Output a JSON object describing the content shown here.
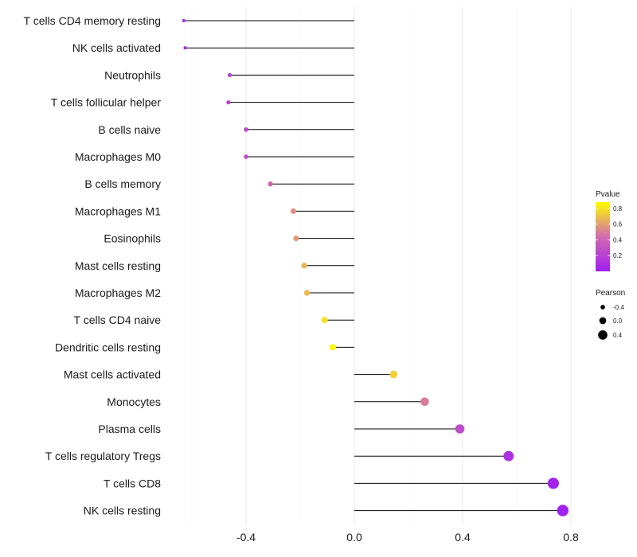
{
  "chart_data": {
    "type": "lollipop",
    "title": "",
    "xlabel": "",
    "ylabel": "",
    "xlim": [
      -0.7,
      0.8
    ],
    "x_ticks": [
      -0.4,
      0.0,
      0.4,
      0.8
    ],
    "x_tick_labels": [
      "-0.4",
      "0.0",
      "0.4",
      "0.8"
    ],
    "grid": true,
    "series": [
      {
        "name": "T cells CD4 memory resting",
        "pearson": -0.63,
        "pvalue": 0.05
      },
      {
        "name": "NK cells activated",
        "pearson": -0.625,
        "pvalue": 0.05
      },
      {
        "name": "Neutrophils",
        "pearson": -0.46,
        "pvalue": 0.21
      },
      {
        "name": "T cells follicular helper",
        "pearson": -0.465,
        "pvalue": 0.21
      },
      {
        "name": "B cells naive",
        "pearson": -0.4,
        "pvalue": 0.26
      },
      {
        "name": "Macrophages M0",
        "pearson": -0.4,
        "pvalue": 0.27
      },
      {
        "name": "B cells memory",
        "pearson": -0.31,
        "pvalue": 0.39
      },
      {
        "name": "Macrophages M1",
        "pearson": -0.225,
        "pvalue": 0.55
      },
      {
        "name": "Eosinophils",
        "pearson": -0.215,
        "pvalue": 0.58
      },
      {
        "name": "Mast cells resting",
        "pearson": -0.185,
        "pvalue": 0.66
      },
      {
        "name": "Macrophages M2",
        "pearson": -0.175,
        "pvalue": 0.68
      },
      {
        "name": "T cells CD4 naive",
        "pearson": -0.11,
        "pvalue": 0.8
      },
      {
        "name": "Dendritic cells resting",
        "pearson": -0.08,
        "pvalue": 0.86
      },
      {
        "name": "Mast cells activated",
        "pearson": 0.145,
        "pvalue": 0.74
      },
      {
        "name": "Monocytes",
        "pearson": 0.26,
        "pvalue": 0.5
      },
      {
        "name": "Plasma cells",
        "pearson": 0.39,
        "pvalue": 0.26
      },
      {
        "name": "T cells regulatory  Tregs",
        "pearson": 0.57,
        "pvalue": 0.1
      },
      {
        "name": "T cells CD8",
        "pearson": 0.735,
        "pvalue": 0.02
      },
      {
        "name": "NK cells resting",
        "pearson": 0.77,
        "pvalue": 0.01
      }
    ],
    "legend": {
      "color_title": "Pvalue",
      "color_ticks": [
        0.8,
        0.6,
        0.4,
        0.2
      ],
      "color_tick_labels": [
        "0.8",
        "0.6",
        "0.4",
        "0.2"
      ],
      "color_range": [
        0.0,
        0.88
      ],
      "color_low": "#a020f0",
      "color_mid": "#d36ab0",
      "color_high": "#ffff00",
      "size_title": "Pearson",
      "size_ticks": [
        -0.4,
        0.0,
        0.4
      ],
      "size_tick_labels": [
        "-0.4",
        "0.0",
        "0.4"
      ],
      "position": "right"
    }
  }
}
